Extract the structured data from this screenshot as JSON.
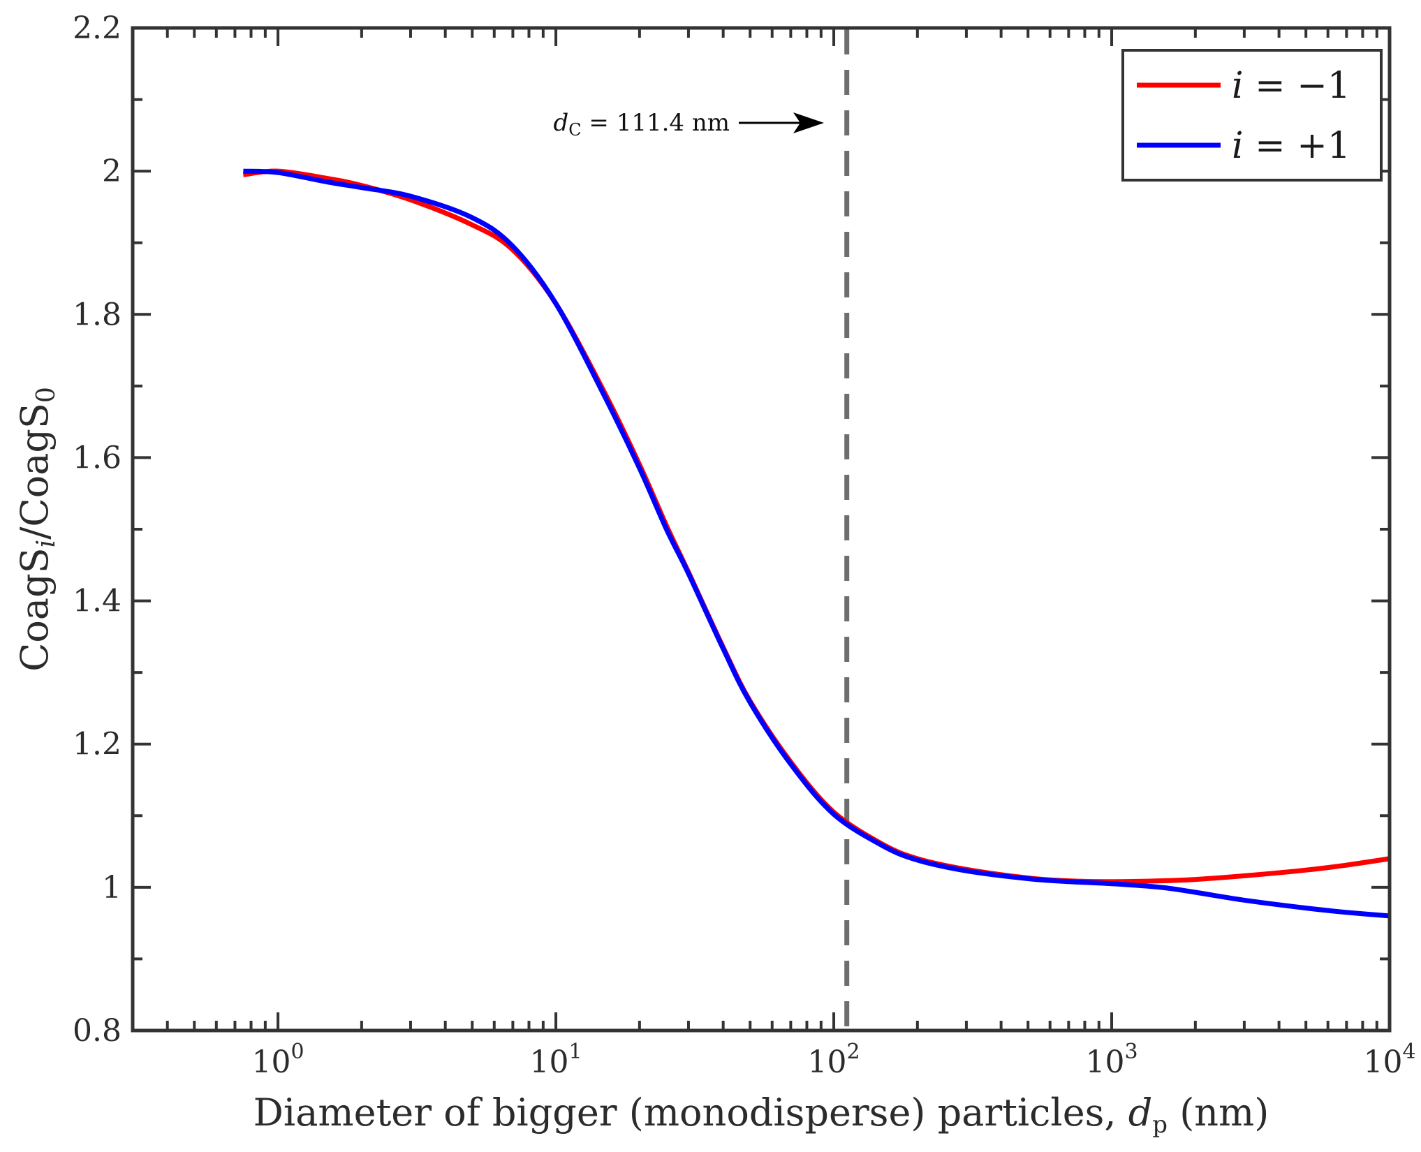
{
  "chart_data": {
    "type": "line",
    "xscale": "log",
    "xlim": [
      0.3,
      10000
    ],
    "ylim": [
      0.8,
      2.2
    ],
    "grid": false,
    "xlabel": {
      "prefix": "Diameter of bigger (monodisperse) particles, ",
      "var": "d",
      "sub": "p",
      "suffix": " (nm)"
    },
    "ylabel": {
      "part1": "CoagS",
      "sub1": "i",
      "part2": "/CoagS",
      "sub2": "0"
    },
    "x_ticks": [
      {
        "value": 1,
        "base": "10",
        "exp": "0"
      },
      {
        "value": 10,
        "base": "10",
        "exp": "1"
      },
      {
        "value": 100,
        "base": "10",
        "exp": "2"
      },
      {
        "value": 1000,
        "base": "10",
        "exp": "3"
      },
      {
        "value": 10000,
        "base": "10",
        "exp": "4"
      }
    ],
    "y_ticks": [
      {
        "value": 0.8,
        "label": "0.8"
      },
      {
        "value": 1.0,
        "label": "1"
      },
      {
        "value": 1.2,
        "label": "1.2"
      },
      {
        "value": 1.4,
        "label": "1.4"
      },
      {
        "value": 1.6,
        "label": "1.6"
      },
      {
        "value": 1.8,
        "label": "1.8"
      },
      {
        "value": 2.0,
        "label": "2"
      },
      {
        "value": 2.2,
        "label": "2.2"
      }
    ],
    "reference_line": {
      "x": 111.4,
      "style": "dashed",
      "color": "#6e6e6e"
    },
    "annotation": {
      "var": "d",
      "sub": "C",
      "text": " = 111.4 nm",
      "arrow": "right"
    },
    "legend": {
      "location": "top-right",
      "entries": [
        {
          "label_var": "i",
          "label_text": " = −1",
          "color": "#ff0000"
        },
        {
          "label_var": "i",
          "label_text": " = +1",
          "color": "#0000ff"
        }
      ]
    },
    "series": [
      {
        "name": "i = −1",
        "color": "#ff0000",
        "x": [
          0.75,
          1,
          1.5,
          2,
          3,
          5,
          7,
          10,
          15,
          20,
          25,
          30,
          40,
          50,
          70,
          100,
          150,
          200,
          300,
          500,
          700,
          1000,
          1500,
          2000,
          3000,
          5000,
          7000,
          10000
        ],
        "y": [
          1.995,
          2.0,
          1.99,
          1.98,
          1.96,
          1.925,
          1.89,
          1.815,
          1.69,
          1.59,
          1.505,
          1.44,
          1.335,
          1.26,
          1.175,
          1.105,
          1.06,
          1.04,
          1.025,
          1.013,
          1.009,
          1.008,
          1.009,
          1.011,
          1.016,
          1.024,
          1.031,
          1.04
        ]
      },
      {
        "name": "i = +1",
        "color": "#0000ff",
        "x": [
          0.75,
          1,
          1.5,
          2,
          3,
          5,
          7,
          10,
          15,
          20,
          25,
          30,
          40,
          50,
          70,
          100,
          150,
          200,
          300,
          500,
          700,
          1000,
          1500,
          2000,
          3000,
          5000,
          7000,
          10000
        ],
        "y": [
          2.0,
          1.998,
          1.985,
          1.977,
          1.965,
          1.935,
          1.895,
          1.815,
          1.685,
          1.585,
          1.5,
          1.438,
          1.333,
          1.258,
          1.172,
          1.102,
          1.058,
          1.038,
          1.023,
          1.012,
          1.008,
          1.005,
          1.0,
          0.993,
          0.982,
          0.971,
          0.965,
          0.96
        ]
      }
    ]
  }
}
